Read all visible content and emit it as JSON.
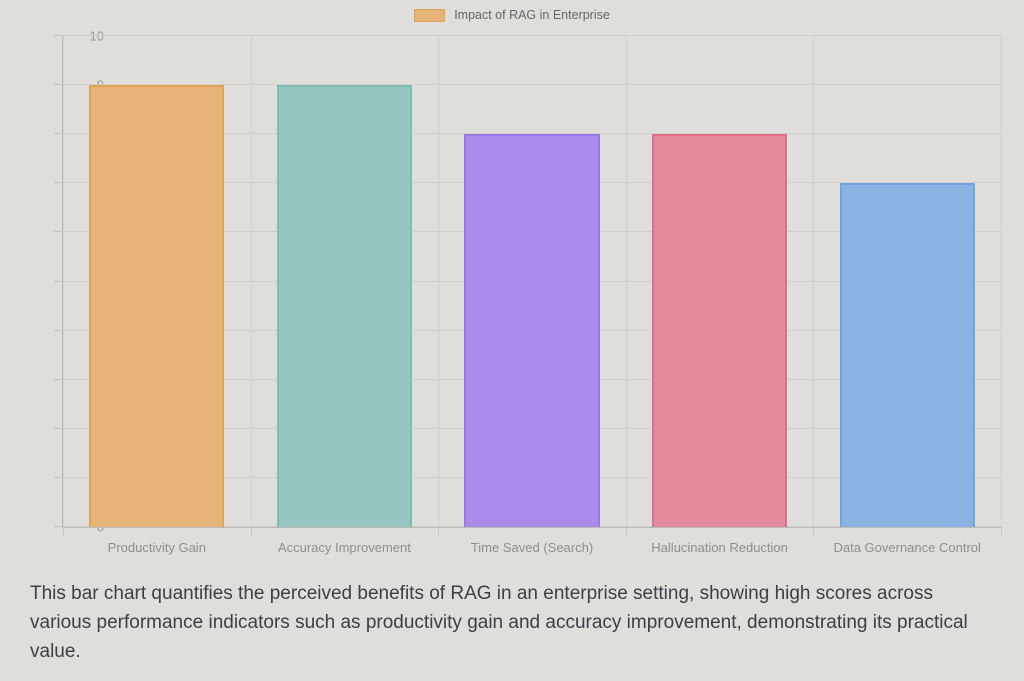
{
  "legend": {
    "label": "Impact of RAG in Enterprise"
  },
  "caption": "This bar chart quantifies the perceived benefits of RAG in an enterprise setting, showing high scores across various performance indicators such as productivity gain and accuracy improvement, demonstrating its practical value.",
  "chart_data": {
    "type": "bar",
    "title": "",
    "legend_label": "Impact of RAG in Enterprise",
    "legend_position": "top",
    "categories": [
      "Productivity Gain",
      "Accuracy Improvement",
      "Time Saved (Search)",
      "Hallucination Reduction",
      "Data Governance Control"
    ],
    "values": [
      9,
      9,
      8,
      8,
      7
    ],
    "xlabel": "",
    "ylabel": "",
    "ylim": [
      0,
      10
    ],
    "ytick_step": 1,
    "grid": true,
    "bar_fill_colors": [
      "#e6b378",
      "#97c5c0",
      "#a98ce9",
      "#e18b9d",
      "#8ab2e3"
    ],
    "bar_border_colors": [
      "#dfa356",
      "#7dbbb3",
      "#9877e6",
      "#dd7089",
      "#73a3de"
    ]
  },
  "colors": {
    "background": "#dfdedb",
    "gridline": "#d1d0cd",
    "axis_line": "#bcbbb8",
    "tick_label": "#9c9b99",
    "category_label": "#8f8e8b",
    "legend_text": "#666664",
    "caption_text": "#3b4046"
  }
}
